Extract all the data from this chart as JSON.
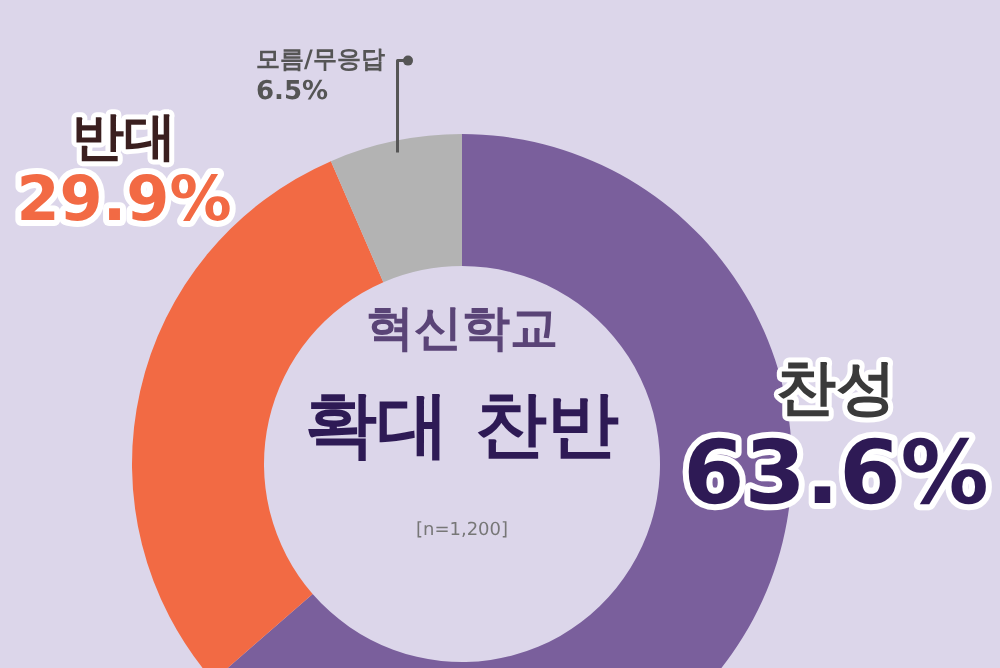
{
  "chart_data": {
    "type": "donut",
    "title": "혁신학교",
    "subtitle": "확대 찬반",
    "annotations": [
      "[n=1,200]"
    ],
    "categories": [
      "찬성",
      "반대",
      "모름/무응답"
    ],
    "values": [
      63.6,
      29.9,
      6.5
    ],
    "colors": [
      "#7a5f9c",
      "#f26a44",
      "#b3b3b3"
    ],
    "value_labels": [
      "63.6%",
      "29.9%",
      "6.5%"
    ],
    "legend": false
  }
}
